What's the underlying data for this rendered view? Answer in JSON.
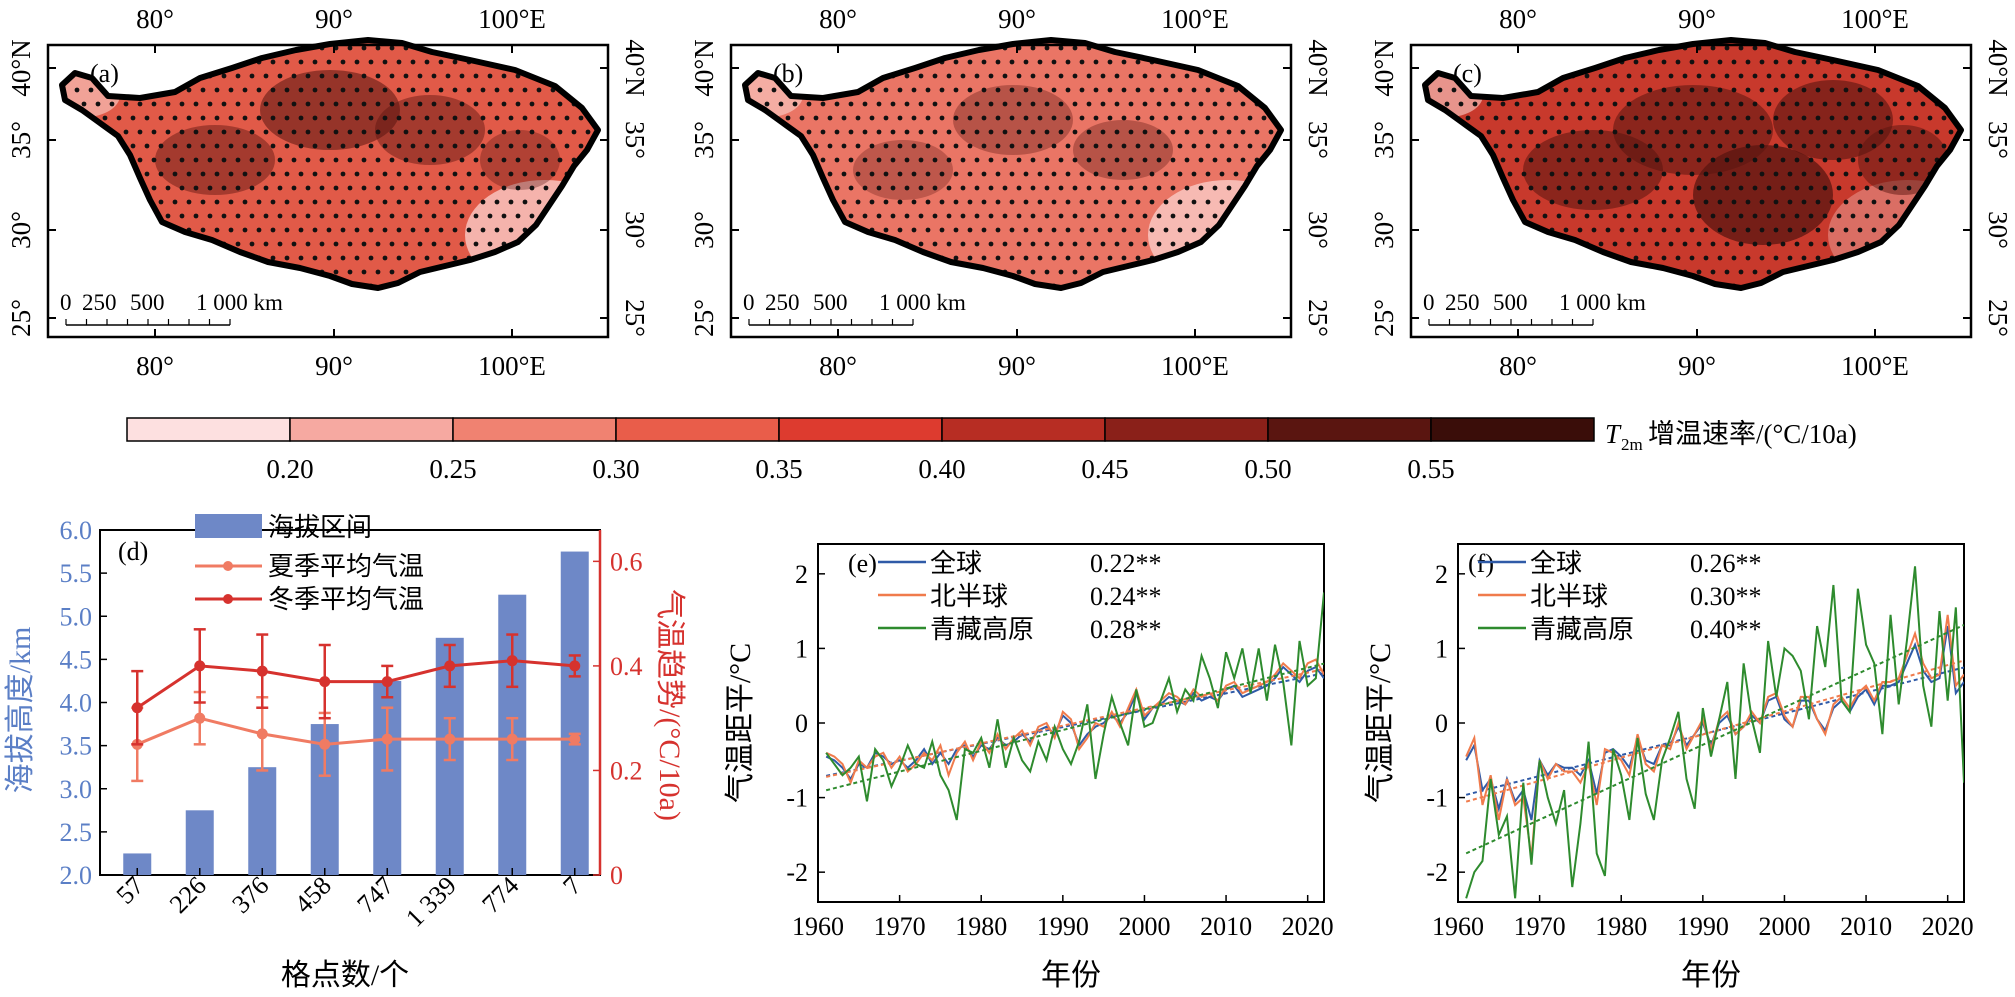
{
  "maps": {
    "panels": [
      {
        "label": "(a)",
        "tone": 0.5
      },
      {
        "label": "(b)",
        "tone": 0.38
      },
      {
        "label": "(c)",
        "tone": 0.72
      }
    ],
    "lon_ticks": [
      "80°",
      "90°",
      "100°E"
    ],
    "lat_ticks": [
      "40°N",
      "35°",
      "30°",
      "25°"
    ],
    "scalebar": {
      "zero": "0",
      "a": "250",
      "b": "500",
      "c": "1 000 km"
    }
  },
  "colorbar": {
    "label": "增温速率/(°C/10a)",
    "symbol": "T",
    "symbol_sub": "2m",
    "ticks": [
      "0.20",
      "0.25",
      "0.30",
      "0.35",
      "0.40",
      "0.45",
      "0.50",
      "0.55"
    ],
    "colors": [
      "#fde0e0",
      "#f6a9a1",
      "#f08271",
      "#e95d4a",
      "#dd3b2f",
      "#b72d23",
      "#8a2019",
      "#5a1510",
      "#3a0d09"
    ]
  },
  "chart_data": [
    {
      "type": "bar",
      "panel": "(d)",
      "categories": [
        "57",
        "226",
        "376",
        "458",
        "747",
        "1 339",
        "774",
        "7"
      ],
      "xlabel": "格点数/个",
      "ylabel": "海拔高度/km",
      "ylabel_right": "气温趋势/(°C/10a)",
      "ylim": [
        2.0,
        6.0
      ],
      "ylim_right": [
        0,
        0.66
      ],
      "yticks": [
        "2.0",
        "2.5",
        "3.0",
        "3.5",
        "4.0",
        "4.5",
        "5.0",
        "5.5",
        "6.0"
      ],
      "yticks_right": [
        "0",
        "0.2",
        "0.4",
        "0.6"
      ],
      "bars": {
        "name": "海拔区间",
        "values": [
          2.25,
          2.75,
          3.25,
          3.75,
          4.25,
          4.75,
          5.25,
          5.75
        ],
        "color": "#6e88c7"
      },
      "series": [
        {
          "name": "夏季平均气温",
          "values": [
            0.25,
            0.3,
            0.27,
            0.25,
            0.26,
            0.26,
            0.26,
            0.26
          ],
          "errors": [
            0.07,
            0.05,
            0.07,
            0.06,
            0.06,
            0.04,
            0.04,
            0.01
          ],
          "color": "#f07b63"
        },
        {
          "name": "冬季平均气温",
          "values": [
            0.32,
            0.4,
            0.39,
            0.37,
            0.37,
            0.4,
            0.41,
            0.4
          ],
          "errors": [
            0.07,
            0.07,
            0.07,
            0.07,
            0.03,
            0.04,
            0.05,
            0.02
          ],
          "color": "#d6322e"
        }
      ],
      "right_axis_color": "#d6322e",
      "left_axis_color": "#5b7fc6"
    },
    {
      "type": "line",
      "panel": "(e)",
      "xlabel": "年份",
      "ylabel": "气温距平/°C",
      "xlim": [
        1960,
        2022
      ],
      "ylim": [
        -2.4,
        2.4
      ],
      "xticks": [
        "1960",
        "1970",
        "1980",
        "1990",
        "2000",
        "2010",
        "2020"
      ],
      "yticks": [
        "-2",
        "-1",
        "0",
        "1",
        "2"
      ],
      "x_start": 1961,
      "series": [
        {
          "name": "全球",
          "trend": "0.22**",
          "color": "#2f5aa7",
          "values": [
            -0.45,
            -0.5,
            -0.6,
            -0.75,
            -0.55,
            -0.6,
            -0.4,
            -0.45,
            -0.55,
            -0.5,
            -0.6,
            -0.5,
            -0.35,
            -0.55,
            -0.4,
            -0.55,
            -0.35,
            -0.3,
            -0.45,
            -0.3,
            -0.35,
            -0.2,
            -0.3,
            -0.25,
            -0.15,
            -0.25,
            -0.1,
            -0.05,
            -0.15,
            0.1,
            0.0,
            -0.3,
            -0.15,
            -0.05,
            0.0,
            0.1,
            0.0,
            0.15,
            0.4,
            0.05,
            0.2,
            0.25,
            0.35,
            0.3,
            0.25,
            0.4,
            0.3,
            0.35,
            0.3,
            0.45,
            0.5,
            0.35,
            0.4,
            0.45,
            0.5,
            0.6,
            0.75,
            0.65,
            0.55,
            0.7,
            0.75,
            0.6
          ]
        },
        {
          "name": "北半球",
          "trend": "0.24**",
          "color": "#f07b4c",
          "values": [
            -0.4,
            -0.45,
            -0.55,
            -0.8,
            -0.5,
            -0.6,
            -0.45,
            -0.4,
            -0.6,
            -0.45,
            -0.65,
            -0.55,
            -0.4,
            -0.5,
            -0.3,
            -0.7,
            -0.4,
            -0.25,
            -0.5,
            -0.25,
            -0.4,
            -0.15,
            -0.35,
            -0.2,
            -0.1,
            -0.3,
            -0.05,
            0.0,
            -0.2,
            0.15,
            0.05,
            -0.35,
            -0.2,
            0.0,
            -0.05,
            0.15,
            -0.05,
            0.2,
            0.45,
            0.1,
            0.2,
            0.3,
            0.4,
            0.35,
            0.25,
            0.45,
            0.35,
            0.4,
            0.3,
            0.5,
            0.55,
            0.4,
            0.45,
            0.5,
            0.55,
            0.65,
            0.8,
            0.7,
            0.6,
            0.8,
            0.85,
            0.65
          ]
        },
        {
          "name": "青藏高原",
          "trend": "0.28**",
          "color": "#2e8b2e",
          "values": [
            -0.4,
            -0.55,
            -0.7,
            -0.6,
            -0.45,
            -1.05,
            -0.35,
            -0.5,
            -0.85,
            -0.6,
            -0.3,
            -0.55,
            -0.6,
            -0.25,
            -0.7,
            -0.9,
            -1.3,
            -0.35,
            -0.4,
            -0.2,
            -0.6,
            0.05,
            -0.6,
            -0.2,
            -0.5,
            -0.65,
            -0.25,
            -0.5,
            -0.05,
            -0.35,
            -0.55,
            -0.25,
            0.25,
            -0.75,
            -0.15,
            0.35,
            0.0,
            -0.3,
            0.45,
            -0.05,
            0.0,
            0.3,
            0.6,
            0.15,
            0.45,
            0.3,
            0.9,
            0.6,
            0.2,
            0.95,
            0.6,
            1.0,
            0.4,
            1.0,
            0.3,
            1.05,
            0.55,
            -0.3,
            1.1,
            0.5,
            0.6,
            1.75
          ]
        }
      ]
    },
    {
      "type": "line",
      "panel": "(f)",
      "xlabel": "年份",
      "ylabel": "气温距平/°C",
      "xlim": [
        1960,
        2022
      ],
      "ylim": [
        -2.4,
        2.4
      ],
      "xticks": [
        "1960",
        "1970",
        "1980",
        "1990",
        "2000",
        "2010",
        "2020"
      ],
      "yticks": [
        "-2",
        "-1",
        "0",
        "1",
        "2"
      ],
      "x_start": 1961,
      "series": [
        {
          "name": "全球",
          "trend": "0.26**",
          "color": "#2f5aa7",
          "values": [
            -0.5,
            -0.3,
            -0.9,
            -0.75,
            -1.15,
            -0.75,
            -1.05,
            -0.9,
            -1.3,
            -0.5,
            -0.7,
            -0.55,
            -0.6,
            -0.6,
            -0.7,
            -0.5,
            -0.95,
            -0.4,
            -0.35,
            -0.45,
            -0.6,
            -0.2,
            -0.5,
            -0.55,
            -0.3,
            -0.3,
            -0.05,
            -0.3,
            -0.15,
            0.0,
            -0.3,
            0.0,
            0.1,
            -0.15,
            -0.05,
            0.1,
            0.0,
            0.3,
            0.35,
            0.05,
            -0.05,
            0.3,
            0.3,
            0.05,
            -0.1,
            0.2,
            0.3,
            0.15,
            0.35,
            0.45,
            0.25,
            0.5,
            0.5,
            0.55,
            0.8,
            1.05,
            0.7,
            0.55,
            0.6,
            1.3,
            0.4,
            0.55
          ]
        },
        {
          "name": "北半球",
          "trend": "0.30**",
          "color": "#f07b4c",
          "values": [
            -0.45,
            -0.2,
            -1.1,
            -0.7,
            -1.3,
            -0.75,
            -1.1,
            -1.0,
            -1.8,
            -0.5,
            -0.75,
            -0.55,
            -0.65,
            -0.65,
            -0.8,
            -0.55,
            -1.1,
            -0.35,
            -0.4,
            -0.5,
            -0.7,
            -0.15,
            -0.55,
            -0.65,
            -0.3,
            -0.35,
            0.0,
            -0.35,
            -0.15,
            0.05,
            -0.35,
            0.05,
            0.15,
            -0.15,
            -0.05,
            0.15,
            0.0,
            0.35,
            0.4,
            0.1,
            -0.05,
            0.35,
            0.35,
            0.05,
            -0.15,
            0.25,
            0.35,
            0.2,
            0.4,
            0.5,
            0.3,
            0.55,
            0.55,
            0.6,
            0.9,
            1.2,
            0.8,
            0.6,
            0.65,
            1.45,
            0.5,
            0.65
          ]
        },
        {
          "name": "青藏高原",
          "trend": "0.40**",
          "color": "#2e8b2e",
          "values": [
            -2.35,
            -2.0,
            -1.85,
            -0.75,
            -1.5,
            -1.25,
            -2.35,
            -0.8,
            -1.9,
            -0.5,
            -1.0,
            -1.35,
            -0.9,
            -2.2,
            -1.35,
            -0.25,
            -1.75,
            -2.05,
            -0.35,
            -0.7,
            -1.3,
            -0.2,
            -0.95,
            -1.3,
            -0.5,
            -0.2,
            0.15,
            -0.75,
            -1.15,
            0.2,
            -0.45,
            0.05,
            0.55,
            -0.75,
            0.8,
            0.05,
            -0.4,
            1.1,
            0.35,
            1.0,
            0.9,
            0.7,
            0.05,
            1.3,
            0.75,
            1.85,
            0.3,
            0.15,
            1.8,
            1.05,
            0.8,
            -0.15,
            1.45,
            0.25,
            1.1,
            2.1,
            0.5,
            -0.05,
            1.5,
            0.3,
            1.55,
            -0.8
          ]
        }
      ]
    }
  ]
}
